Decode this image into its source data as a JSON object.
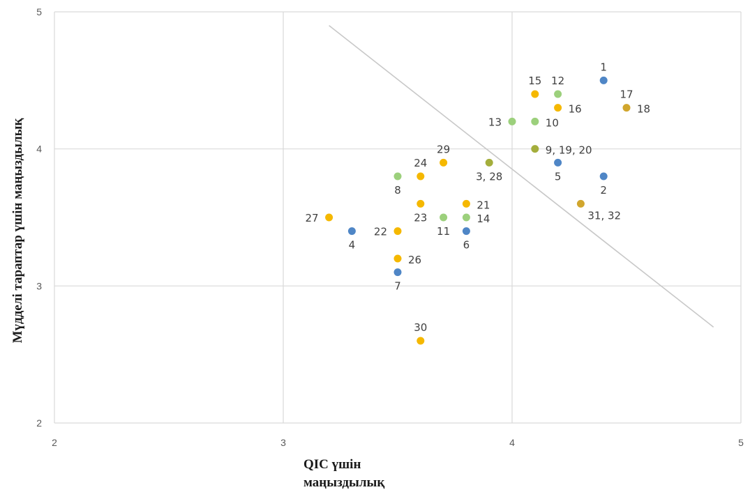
{
  "chart_data": {
    "type": "scatter",
    "xlabel": [
      "QIC үшін",
      "маңыздылық"
    ],
    "ylabel": "Мүдделі тараптар үшін маңыздылық",
    "xlim": [
      2,
      5
    ],
    "ylim": [
      2,
      5
    ],
    "x_ticks": [
      "2",
      "3",
      "4",
      "5"
    ],
    "y_ticks": [
      "2",
      "3",
      "4",
      "5"
    ],
    "grid": true,
    "legend": "none",
    "trend_line": {
      "from": [
        3.2,
        4.9
      ],
      "to": [
        4.88,
        2.7
      ]
    },
    "colors": {
      "blue": "#4f86c6",
      "green": "#9cd07c",
      "yellow": "#f5b800",
      "olive": "#a4ae3c",
      "gold": "#d1a62d",
      "grid": "#d9d9d9",
      "line": "#c8c8c8"
    },
    "points": [
      {
        "x": 4.4,
        "y": 4.5,
        "color": "blue"
      },
      {
        "x": 4.4,
        "y": 3.8,
        "color": "blue"
      },
      {
        "x": 4.2,
        "y": 3.9,
        "color": "blue"
      },
      {
        "x": 3.3,
        "y": 3.4,
        "color": "blue"
      },
      {
        "x": 3.8,
        "y": 3.4,
        "color": "blue"
      },
      {
        "x": 3.5,
        "y": 3.1,
        "color": "blue"
      },
      {
        "x": 4.2,
        "y": 4.4,
        "color": "green"
      },
      {
        "x": 4.1,
        "y": 4.2,
        "color": "green"
      },
      {
        "x": 4.0,
        "y": 4.2,
        "color": "green"
      },
      {
        "x": 3.5,
        "y": 3.8,
        "color": "green"
      },
      {
        "x": 3.7,
        "y": 3.5,
        "color": "green"
      },
      {
        "x": 3.8,
        "y": 3.5,
        "color": "green"
      },
      {
        "x": 4.1,
        "y": 4.0,
        "color": "olive"
      },
      {
        "x": 3.9,
        "y": 3.9,
        "color": "olive"
      },
      {
        "x": 4.1,
        "y": 4.4,
        "color": "yellow"
      },
      {
        "x": 4.2,
        "y": 4.3,
        "color": "yellow"
      },
      {
        "x": 4.5,
        "y": 4.3,
        "color": "gold"
      },
      {
        "x": 4.3,
        "y": 3.6,
        "color": "gold"
      },
      {
        "x": 3.7,
        "y": 3.9,
        "color": "yellow"
      },
      {
        "x": 3.6,
        "y": 3.8,
        "color": "yellow"
      },
      {
        "x": 3.6,
        "y": 3.6,
        "color": "yellow"
      },
      {
        "x": 3.8,
        "y": 3.6,
        "color": "yellow"
      },
      {
        "x": 3.2,
        "y": 3.5,
        "color": "yellow"
      },
      {
        "x": 3.5,
        "y": 3.4,
        "color": "yellow"
      },
      {
        "x": 3.5,
        "y": 3.2,
        "color": "yellow"
      },
      {
        "x": 3.6,
        "y": 2.6,
        "color": "yellow"
      }
    ],
    "annotations": [
      {
        "text": "1",
        "x": 4.4,
        "y": 4.5,
        "pos": "above"
      },
      {
        "text": "2",
        "x": 4.4,
        "y": 3.8,
        "pos": "below"
      },
      {
        "text": "5",
        "x": 4.2,
        "y": 3.9,
        "pos": "below"
      },
      {
        "text": "4",
        "x": 3.3,
        "y": 3.4,
        "pos": "below"
      },
      {
        "text": "6",
        "x": 3.8,
        "y": 3.4,
        "pos": "below"
      },
      {
        "text": "7",
        "x": 3.5,
        "y": 3.1,
        "pos": "below"
      },
      {
        "text": "12",
        "x": 4.2,
        "y": 4.4,
        "pos": "above"
      },
      {
        "text": "10",
        "x": 4.1,
        "y": 4.2,
        "pos": "right"
      },
      {
        "text": "13",
        "x": 4.0,
        "y": 4.2,
        "pos": "left"
      },
      {
        "text": "8",
        "x": 3.5,
        "y": 3.8,
        "pos": "below"
      },
      {
        "text": "11",
        "x": 3.7,
        "y": 3.5,
        "pos": "below"
      },
      {
        "text": "14",
        "x": 3.8,
        "y": 3.5,
        "pos": "right"
      },
      {
        "text": "9, 19, 20",
        "x": 4.1,
        "y": 4.0,
        "pos": "right"
      },
      {
        "text": "3, 28",
        "x": 3.9,
        "y": 3.9,
        "pos": "below"
      },
      {
        "text": "15",
        "x": 4.1,
        "y": 4.4,
        "pos": "above"
      },
      {
        "text": "16",
        "x": 4.2,
        "y": 4.3,
        "pos": "right"
      },
      {
        "text": "17",
        "x": 4.5,
        "y": 4.3,
        "pos": "above"
      },
      {
        "text": "18",
        "x": 4.5,
        "y": 4.3,
        "pos": "right"
      },
      {
        "text": "31, 32",
        "x": 4.3,
        "y": 3.6,
        "pos": "belowright"
      },
      {
        "text": "29",
        "x": 3.7,
        "y": 3.9,
        "pos": "above"
      },
      {
        "text": "24",
        "x": 3.6,
        "y": 3.8,
        "pos": "above"
      },
      {
        "text": "23",
        "x": 3.6,
        "y": 3.6,
        "pos": "below"
      },
      {
        "text": "21",
        "x": 3.8,
        "y": 3.6,
        "pos": "right"
      },
      {
        "text": "27",
        "x": 3.2,
        "y": 3.5,
        "pos": "left"
      },
      {
        "text": "22",
        "x": 3.5,
        "y": 3.4,
        "pos": "left"
      },
      {
        "text": "26",
        "x": 3.5,
        "y": 3.2,
        "pos": "right"
      },
      {
        "text": "30",
        "x": 3.6,
        "y": 2.6,
        "pos": "above"
      }
    ]
  }
}
